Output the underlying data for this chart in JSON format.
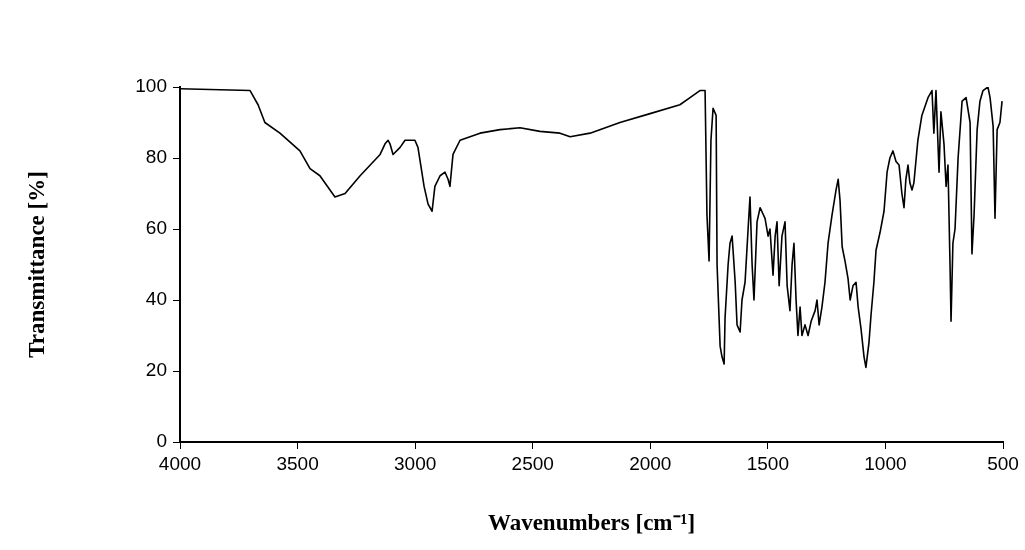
{
  "chart_data": {
    "type": "line",
    "xlabel": "Wavenumbers [cm⁻¹]",
    "ylabel": "Transmittance [%]",
    "xlim": [
      4000,
      500
    ],
    "xticks": [
      4000,
      3500,
      3000,
      2500,
      2000,
      1500,
      1000,
      500
    ],
    "ylim": [
      0,
      100
    ],
    "yticks": [
      0,
      20,
      40,
      60,
      80,
      100
    ],
    "grid": false,
    "legend": false,
    "marker": "none",
    "line_style": "solid",
    "series": [
      {
        "color": "#000000",
        "x": [
          4000,
          3702,
          3668,
          3639,
          3575,
          3490,
          3447,
          3405,
          3341,
          3298,
          3234,
          3149,
          3128,
          3115,
          3107,
          3094,
          3064,
          3043,
          3001,
          2988,
          2962,
          2945,
          2928,
          2916,
          2894,
          2873,
          2860,
          2852,
          2839,
          2809,
          2724,
          2639,
          2554,
          2469,
          2384,
          2341,
          2256,
          2129,
          2001,
          1874,
          1831,
          1789,
          1767,
          1759,
          1750,
          1742,
          1733,
          1720,
          1716,
          1703,
          1695,
          1686,
          1682,
          1669,
          1661,
          1652,
          1639,
          1631,
          1618,
          1610,
          1597,
          1584,
          1576,
          1567,
          1559,
          1546,
          1533,
          1512,
          1499,
          1491,
          1478,
          1469,
          1461,
          1452,
          1440,
          1427,
          1418,
          1406,
          1397,
          1389,
          1380,
          1372,
          1363,
          1355,
          1342,
          1329,
          1316,
          1299,
          1291,
          1282,
          1270,
          1257,
          1244,
          1227,
          1210,
          1201,
          1193,
          1184,
          1172,
          1159,
          1150,
          1138,
          1125,
          1116,
          1104,
          1091,
          1083,
          1070,
          1061,
          1049,
          1040,
          1023,
          1006,
          993,
          981,
          968,
          955,
          942,
          930,
          921,
          913,
          904,
          896,
          887,
          879,
          862,
          845,
          819,
          802,
          794,
          785,
          772,
          764,
          751,
          742,
          734,
          725,
          721,
          713,
          704,
          691,
          674,
          657,
          640,
          632,
          623,
          610,
          598,
          585,
          564,
          555,
          542,
          534,
          525,
          513,
          504
        ],
        "values": [
          99.5,
          99,
          95,
          90,
          87,
          82,
          77,
          75,
          69,
          70,
          75,
          81,
          84,
          85,
          84,
          81,
          83,
          85,
          85,
          83,
          72,
          67,
          65,
          72,
          75,
          76,
          74,
          72,
          81,
          85,
          87,
          88,
          88.5,
          87.5,
          87,
          86,
          87,
          90,
          92.5,
          95,
          97,
          99,
          99,
          64,
          51,
          85,
          94,
          92,
          50,
          27,
          24,
          22,
          35,
          50,
          56,
          58,
          45,
          33,
          31,
          40,
          45,
          60,
          69,
          50,
          40,
          62,
          66,
          63,
          58,
          60,
          47,
          58,
          62,
          44,
          58,
          62,
          44,
          37,
          50,
          56,
          40,
          30,
          38,
          30,
          33,
          30,
          34,
          37,
          40,
          33,
          38,
          45,
          56,
          64,
          71,
          74,
          68,
          55,
          51,
          46,
          40,
          44,
          45,
          38,
          32,
          24,
          21,
          28,
          36,
          45,
          54,
          59,
          65,
          76,
          80,
          82,
          79,
          78,
          70,
          66,
          74,
          78,
          73,
          71,
          73,
          85,
          92,
          97,
          99,
          87,
          99,
          76,
          93,
          84,
          72,
          78,
          49,
          34,
          56,
          60,
          80,
          96,
          97,
          90,
          53,
          64,
          88,
          96,
          99,
          100,
          97,
          89,
          63,
          88,
          90,
          96
        ]
      }
    ]
  }
}
